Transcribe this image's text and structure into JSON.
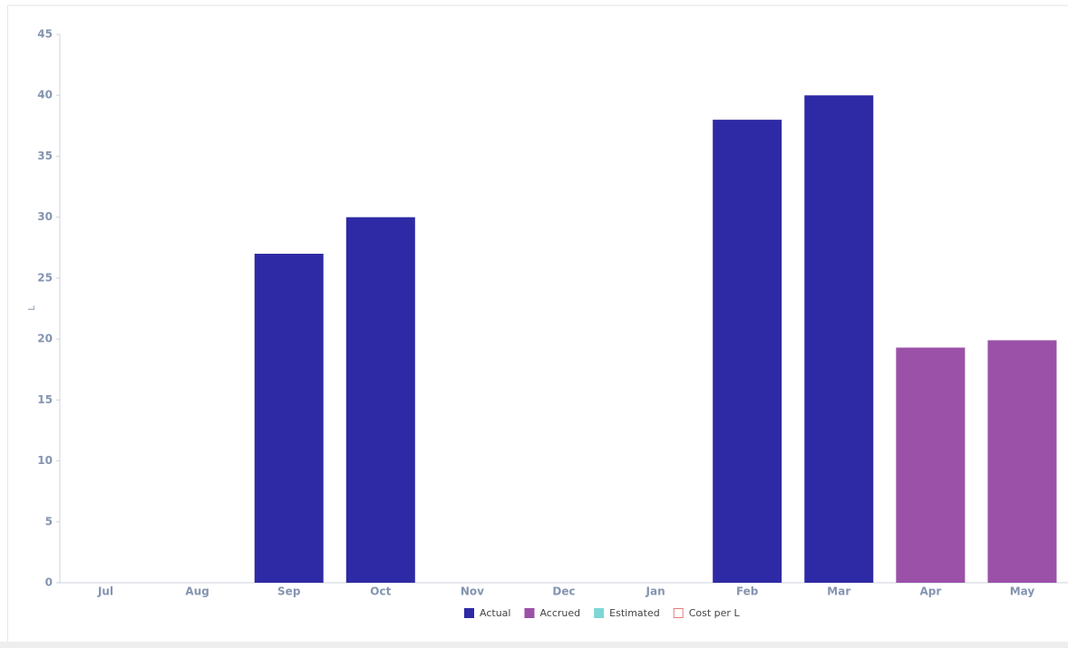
{
  "chart_data": {
    "type": "bar",
    "stacked": true,
    "y_label": "L",
    "categories": [
      "Jul",
      "Aug",
      "Sep",
      "Oct",
      "Nov",
      "Dec",
      "Jan",
      "Feb",
      "Mar",
      "Apr",
      "May"
    ],
    "series": [
      {
        "name": "Actual",
        "color": "#2e2aa5",
        "values": [
          null,
          null,
          27,
          30,
          null,
          null,
          null,
          38,
          40,
          null,
          null
        ]
      },
      {
        "name": "Accrued",
        "color": "#9b51a8",
        "values": [
          null,
          null,
          null,
          null,
          null,
          null,
          null,
          null,
          null,
          19.3,
          19.9
        ]
      },
      {
        "name": "Estimated",
        "color": "#7fd6d6",
        "values": [
          null,
          null,
          null,
          null,
          null,
          null,
          null,
          null,
          null,
          null,
          null
        ]
      },
      {
        "name": "Cost per L",
        "color": "#e87a7a",
        "marker": "outline",
        "values": [
          null,
          null,
          null,
          null,
          null,
          null,
          null,
          null,
          null,
          null,
          null
        ]
      }
    ],
    "ylim": [
      0,
      45
    ],
    "yticks": [
      0,
      5,
      10,
      15,
      20,
      25,
      30,
      35,
      40,
      45
    ],
    "grid": false,
    "legend": "bottom"
  }
}
